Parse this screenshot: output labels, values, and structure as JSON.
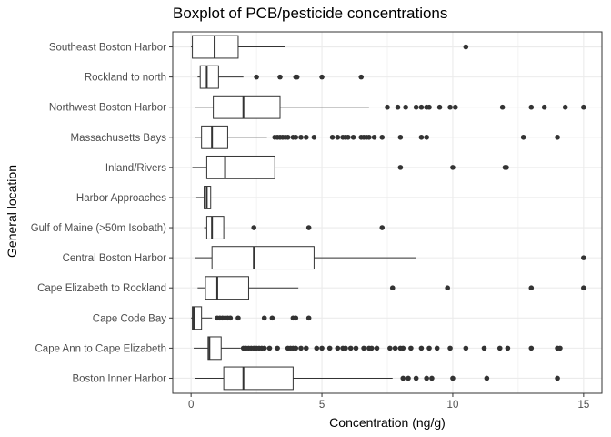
{
  "chart_data": {
    "type": "boxplot",
    "orientation": "horizontal",
    "title": "Boxplot of PCB/pesticide concentrations",
    "xlabel": "Concentration (ng/g)",
    "ylabel": "General location",
    "xlim": [
      -0.7,
      15.7
    ],
    "x_ticks": [
      0,
      5,
      10,
      15
    ],
    "x_tick_labels": [
      "0",
      "5",
      "10",
      "15"
    ],
    "grid": true,
    "colors": {
      "box_fill": "#ffffff",
      "box_stroke": "#333333",
      "point": "#333333",
      "grid": "#ebebeb",
      "panel_border": "#333333"
    },
    "categories": [
      "Southeast Boston Harbor",
      "Rockland to north",
      "Northwest Boston Harbor",
      "Massachusetts Bays",
      "Inland/Rivers",
      "Harbor Approaches",
      "Gulf of Maine (>50m Isobath)",
      "Central Boston Harbor",
      "Cape Elizabeth to Rockland",
      "Cape Code Bay",
      "Cape Ann to Cape Elizabeth",
      "Boston Inner Harbor"
    ],
    "boxes": [
      {
        "whisker_low": 0.0,
        "q1": 0.05,
        "median": 0.9,
        "q3": 1.8,
        "whisker_high": 3.6,
        "outliers": [
          10.5
        ]
      },
      {
        "whisker_low": 0.25,
        "q1": 0.35,
        "median": 0.6,
        "q3": 1.05,
        "whisker_high": 2.0,
        "outliers": [
          2.5,
          3.4,
          4.0,
          4.05,
          5.0,
          6.5
        ]
      },
      {
        "whisker_low": 0.15,
        "q1": 0.85,
        "median": 2.0,
        "q3": 3.4,
        "whisker_high": 6.8,
        "outliers": [
          7.5,
          7.9,
          8.2,
          8.6,
          8.8,
          9.0,
          9.1,
          9.5,
          9.9,
          10.1,
          11.9,
          13.0,
          13.5,
          14.3,
          15.0
        ]
      },
      {
        "whisker_low": 0.15,
        "q1": 0.4,
        "median": 0.8,
        "q3": 1.4,
        "whisker_high": 2.9,
        "outliers": [
          3.2,
          3.3,
          3.4,
          3.5,
          3.6,
          3.7,
          3.9,
          4.0,
          4.2,
          4.4,
          4.7,
          5.4,
          5.6,
          5.8,
          5.9,
          6.0,
          6.2,
          6.5,
          6.6,
          6.7,
          6.8,
          7.0,
          7.3,
          8.0,
          8.8,
          9.0,
          12.7,
          14.0
        ]
      },
      {
        "whisker_low": 0.05,
        "q1": 0.6,
        "median": 1.3,
        "q3": 3.2,
        "whisker_high": 3.2,
        "outliers": [
          8.0,
          10.0,
          12.0,
          12.05
        ]
      },
      {
        "whisker_low": 0.2,
        "q1": 0.5,
        "median": 0.6,
        "q3": 0.75,
        "whisker_high": 0.75,
        "outliers": []
      },
      {
        "whisker_low": 0.5,
        "q1": 0.6,
        "median": 0.8,
        "q3": 1.25,
        "whisker_high": 1.25,
        "outliers": [
          2.4,
          4.5,
          7.3
        ]
      },
      {
        "whisker_low": 0.15,
        "q1": 0.8,
        "median": 2.4,
        "q3": 4.7,
        "whisker_high": 8.6,
        "outliers": [
          15.0
        ]
      },
      {
        "whisker_low": 0.25,
        "q1": 0.55,
        "median": 1.0,
        "q3": 2.2,
        "whisker_high": 4.1,
        "outliers": [
          7.7,
          9.8,
          13.0,
          15.0
        ]
      },
      {
        "whisker_low": 0.0,
        "q1": 0.05,
        "median": 0.1,
        "q3": 0.4,
        "whisker_high": 0.8,
        "outliers": [
          1.0,
          1.1,
          1.2,
          1.3,
          1.4,
          1.5,
          1.8,
          2.8,
          3.1,
          3.9,
          4.0,
          4.5
        ]
      },
      {
        "whisker_low": 0.1,
        "q1": 0.65,
        "median": 0.7,
        "q3": 1.15,
        "whisker_high": 1.9,
        "outliers": [
          2.0,
          2.1,
          2.2,
          2.3,
          2.4,
          2.5,
          2.6,
          2.7,
          2.8,
          3.0,
          3.3,
          3.7,
          3.8,
          3.9,
          4.0,
          4.2,
          4.4,
          4.8,
          5.0,
          5.3,
          5.6,
          5.8,
          5.9,
          6.1,
          6.3,
          6.6,
          6.8,
          6.9,
          7.1,
          7.6,
          7.8,
          8.0,
          8.1,
          8.4,
          8.8,
          9.1,
          9.4,
          9.9,
          10.5,
          11.2,
          11.8,
          12.1,
          13.0,
          14.0,
          14.1
        ]
      },
      {
        "whisker_low": 0.15,
        "q1": 1.25,
        "median": 2.0,
        "q3": 3.9,
        "whisker_high": 7.7,
        "outliers": [
          8.1,
          8.3,
          8.6,
          9.0,
          9.2,
          10.0,
          11.3,
          14.0
        ]
      }
    ]
  }
}
